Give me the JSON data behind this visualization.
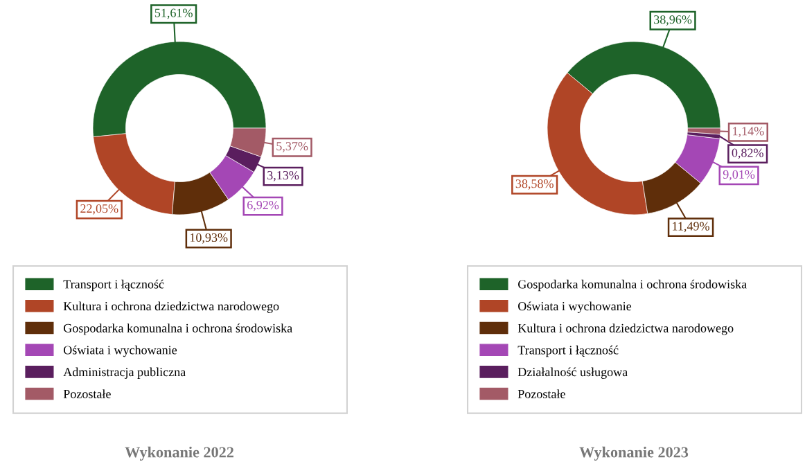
{
  "chart_data": [
    {
      "type": "donut",
      "title": "Wykonanie 2022",
      "categories": [
        "Transport i łączność",
        "Kultura i ochrona dziedzictwa narodowego",
        "Gospodarka komunalna i ochrona środowiska",
        "Oświata i wychowanie",
        "Administracja publiczna",
        "Pozostałe"
      ],
      "values": [
        51.61,
        22.05,
        10.93,
        6.92,
        3.13,
        5.37
      ],
      "value_labels": [
        "51,61%",
        "22,05%",
        "10,93%",
        "6,92%",
        "3,13%",
        "5,37%"
      ],
      "colors": [
        "#1e6329",
        "#b04526",
        "#5f2e0a",
        "#a447b5",
        "#5a1e5e",
        "#a35a66"
      ],
      "legend": "bottom"
    },
    {
      "type": "donut",
      "title": "Wykonanie 2023",
      "categories": [
        "Gospodarka komunalna i ochrona środowiska",
        "Oświata i wychowanie",
        "Kultura i ochrona dziedzictwa narodowego",
        "Transport i łączność",
        "Działalność usługowa",
        "Pozostałe"
      ],
      "values": [
        38.96,
        38.58,
        11.49,
        9.01,
        0.82,
        1.14
      ],
      "value_labels": [
        "38,96%",
        "38,58%",
        "11,49%",
        "9,01%",
        "0,82%",
        "1,14%"
      ],
      "colors": [
        "#1e6329",
        "#b04526",
        "#5f2e0a",
        "#a447b5",
        "#5a1e5e",
        "#a35a66"
      ],
      "legend": "bottom"
    }
  ]
}
